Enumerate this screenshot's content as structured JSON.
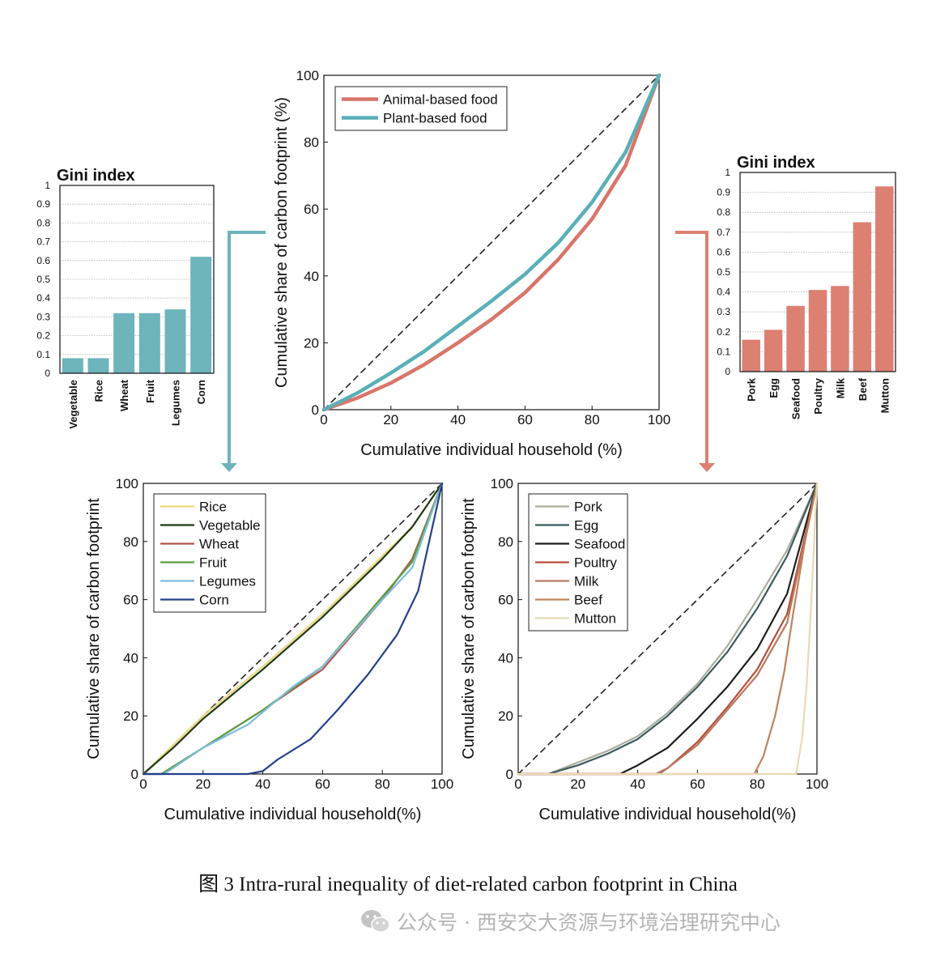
{
  "colors": {
    "plant": "#5aafb8",
    "animal": "#d9756a",
    "plant_bar": "#6db4bb",
    "animal_bar": "#dc8072"
  },
  "chart_data": [
    {
      "id": "main",
      "type": "line",
      "xlabel": "Cumulative individual household (%)",
      "ylabel": "Cumulative share of carbon footprint (%)",
      "xlim": [
        0,
        100
      ],
      "ylim": [
        0,
        100
      ],
      "xticks": [
        "0",
        "20",
        "40",
        "60",
        "80",
        "100"
      ],
      "yticks": [
        "0",
        "20",
        "40",
        "60",
        "80",
        "100"
      ],
      "series": [
        {
          "name": "Equality line",
          "dashed": true,
          "color": "#222222",
          "x": [
            0,
            100
          ],
          "y": [
            0,
            100
          ]
        },
        {
          "name": "Animal-based food",
          "color": "#d9756a",
          "x": [
            0,
            10,
            20,
            30,
            40,
            50,
            60,
            70,
            80,
            90,
            100
          ],
          "y": [
            0,
            3.5,
            8,
            13.5,
            20,
            27,
            35,
            45,
            57,
            73,
            100
          ]
        },
        {
          "name": "Plant-based food",
          "color": "#5aafb8",
          "x": [
            0,
            10,
            20,
            30,
            40,
            50,
            60,
            70,
            80,
            90,
            100
          ],
          "y": [
            0,
            5,
            11,
            17.5,
            25,
            32.5,
            40.5,
            50,
            62,
            77,
            100
          ]
        }
      ],
      "legend": [
        "Animal-based food",
        "Plant-based food"
      ]
    },
    {
      "id": "gini-plant",
      "type": "bar",
      "title": "Gini index",
      "categories": [
        "Vegetable",
        "Rice",
        "Wheat",
        "Fruit",
        "Legumes",
        "Corn"
      ],
      "values": [
        0.08,
        0.08,
        0.32,
        0.32,
        0.34,
        0.62
      ],
      "ylim": [
        0,
        1
      ],
      "yticks": [
        "0",
        "0.1",
        "0.2",
        "0.3",
        "0.4",
        "0.5",
        "0.6",
        "0.7",
        "0.8",
        "0.9",
        "1"
      ]
    },
    {
      "id": "gini-animal",
      "type": "bar",
      "title": "Gini index",
      "categories": [
        "Pork",
        "Egg",
        "Seafood",
        "Poultry",
        "Milk",
        "Beef",
        "Mutton"
      ],
      "values": [
        0.16,
        0.21,
        0.33,
        0.41,
        0.43,
        0.75,
        0.93
      ],
      "ylim": [
        0,
        1
      ],
      "yticks": [
        "0",
        "0.1",
        "0.2",
        "0.3",
        "0.4",
        "0.5",
        "0.6",
        "0.7",
        "0.8",
        "0.9",
        "1"
      ]
    },
    {
      "id": "plant-lorenz",
      "type": "line",
      "xlabel": "Cumulative individual household(%)",
      "ylabel": "Cumulative share of carbon footprint",
      "xlim": [
        0,
        100
      ],
      "ylim": [
        0,
        100
      ],
      "xticks": [
        "0",
        "20",
        "40",
        "60",
        "80",
        "100"
      ],
      "yticks": [
        "0",
        "20",
        "40",
        "60",
        "80",
        "100"
      ],
      "series": [
        {
          "name": "Equality line",
          "dashed": true,
          "color": "#222222",
          "x": [
            0,
            100
          ],
          "y": [
            0,
            100
          ]
        },
        {
          "name": "Rice",
          "color": "#f2d680",
          "x": [
            0,
            5,
            10,
            20,
            40,
            60,
            80,
            90,
            100
          ],
          "y": [
            0,
            5,
            10,
            20,
            37,
            55,
            75,
            85,
            100
          ]
        },
        {
          "name": "Vegetable",
          "color": "#1c3a14",
          "x": [
            0,
            5,
            10,
            20,
            40,
            60,
            80,
            90,
            100
          ],
          "y": [
            0,
            4.5,
            9,
            19,
            36,
            54,
            74,
            85,
            100
          ]
        },
        {
          "name": "Wheat",
          "color": "#b5574c",
          "x": [
            0,
            6,
            20,
            40,
            60,
            80,
            90,
            100
          ],
          "y": [
            0,
            0,
            9,
            22,
            36,
            60,
            74,
            100
          ]
        },
        {
          "name": "Fruit",
          "color": "#5c9e40",
          "x": [
            0,
            6,
            20,
            40,
            60,
            80,
            90,
            100
          ],
          "y": [
            0,
            0,
            9,
            22,
            37,
            61,
            73,
            100
          ]
        },
        {
          "name": "Legumes",
          "color": "#7cbde0",
          "x": [
            0,
            7,
            20,
            35,
            50,
            60,
            80,
            90,
            100
          ],
          "y": [
            0,
            0,
            9,
            17,
            30,
            37,
            60,
            71,
            100
          ]
        },
        {
          "name": "Corn",
          "color": "#24408c",
          "x": [
            0,
            35,
            40,
            45,
            56,
            65,
            75,
            85,
            92,
            100
          ],
          "y": [
            0,
            0,
            1,
            5,
            12,
            22,
            34,
            48,
            63,
            100
          ]
        }
      ],
      "legend": [
        "Rice",
        "Vegetable",
        "Wheat",
        "Fruit",
        "Legumes",
        "Corn"
      ]
    },
    {
      "id": "animal-lorenz",
      "type": "line",
      "xlabel": "Cumulative individual household(%)",
      "ylabel": "Cumulative share of carbon footprint",
      "xlim": [
        0,
        100
      ],
      "ylim": [
        0,
        100
      ],
      "xticks": [
        "0",
        "20",
        "40",
        "60",
        "80",
        "100"
      ],
      "yticks": [
        "0",
        "20",
        "40",
        "60",
        "80",
        "100"
      ],
      "series": [
        {
          "name": "Equality line",
          "dashed": true,
          "color": "#222222",
          "x": [
            0,
            100
          ],
          "y": [
            0,
            100
          ]
        },
        {
          "name": "Pork",
          "color": "#a8ae9b",
          "x": [
            0,
            10,
            20,
            30,
            40,
            50,
            60,
            70,
            80,
            90,
            100
          ],
          "y": [
            0,
            0,
            4,
            8,
            13,
            21,
            31,
            44,
            60,
            77,
            100
          ]
        },
        {
          "name": "Egg",
          "color": "#3c5a5e",
          "x": [
            0,
            10,
            20,
            30,
            40,
            50,
            60,
            70,
            80,
            90,
            100
          ],
          "y": [
            0,
            0,
            3,
            7,
            12,
            20,
            30,
            42,
            57,
            75,
            100
          ]
        },
        {
          "name": "Seafood",
          "color": "#1e1e1e",
          "x": [
            0,
            34,
            40,
            50,
            60,
            70,
            80,
            90,
            100
          ],
          "y": [
            0,
            0,
            3,
            9,
            19,
            30,
            43,
            62,
            100
          ]
        },
        {
          "name": "Poultry",
          "color": "#b6503c",
          "x": [
            0,
            47,
            50,
            60,
            70,
            80,
            90,
            100
          ],
          "y": [
            0,
            0,
            2,
            11,
            23,
            36,
            55,
            100
          ]
        },
        {
          "name": "Milk",
          "color": "#b97862",
          "x": [
            0,
            46,
            50,
            60,
            70,
            80,
            90,
            100
          ],
          "y": [
            0,
            0,
            2,
            10,
            22,
            34,
            52,
            100
          ]
        },
        {
          "name": "Beef",
          "color": "#c0825a",
          "x": [
            0,
            79,
            82,
            86,
            89,
            92,
            96,
            100
          ],
          "y": [
            0,
            0,
            6,
            20,
            35,
            55,
            80,
            100
          ]
        },
        {
          "name": "Mutton",
          "color": "#ead9b4",
          "x": [
            0,
            93,
            95,
            96.5,
            97.5,
            98.5,
            99.3,
            100
          ],
          "y": [
            0,
            0,
            12,
            30,
            48,
            68,
            85,
            100
          ]
        }
      ],
      "legend": [
        "Pork",
        "Egg",
        "Seafood",
        "Poultry",
        "Milk",
        "Beef",
        "Mutton"
      ]
    }
  ],
  "caption": "图 3 Intra-rural inequality of diet-related carbon footprint in China",
  "watermark": "公众号 · 西安交大资源与环境治理研究中心"
}
